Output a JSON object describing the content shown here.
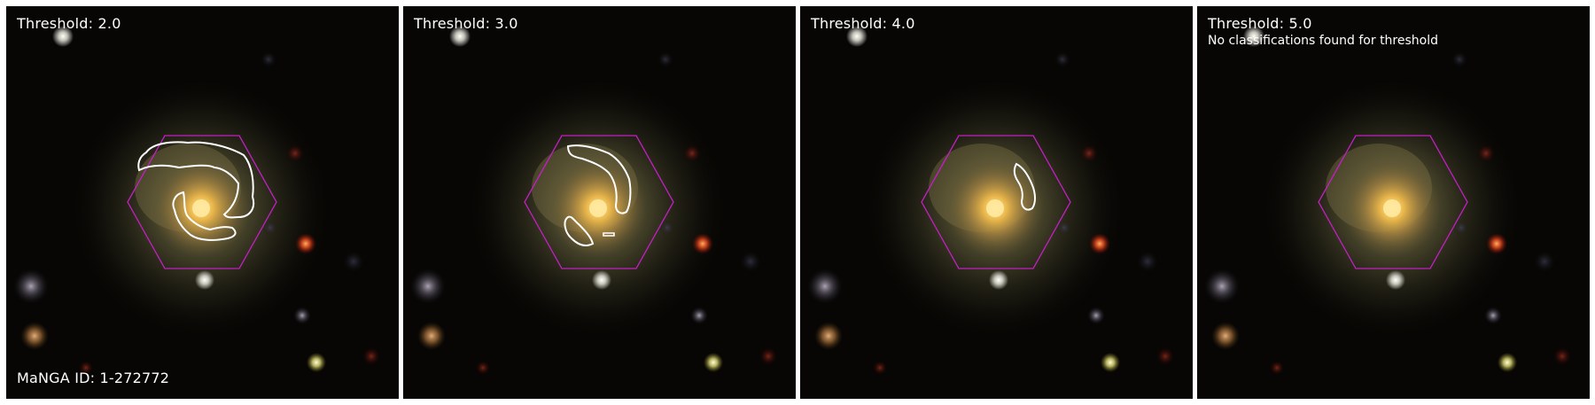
{
  "figure": {
    "panels": [
      {
        "threshold_label": "Threshold: 2.0",
        "note": "",
        "manga_id": "MaNGA ID: 1-272772",
        "contours": 2
      },
      {
        "threshold_label": "Threshold: 3.0",
        "note": "",
        "manga_id": "",
        "contours": 3
      },
      {
        "threshold_label": "Threshold: 4.0",
        "note": "",
        "manga_id": "",
        "contours": 1
      },
      {
        "threshold_label": "Threshold: 5.0",
        "note": "No classifications found for threshold",
        "manga_id": "",
        "contours": 0
      }
    ]
  },
  "colors": {
    "background": "#070604",
    "hexagon": "#c21fc2",
    "contour": "#ffffff",
    "label_text": "#ffffff"
  }
}
